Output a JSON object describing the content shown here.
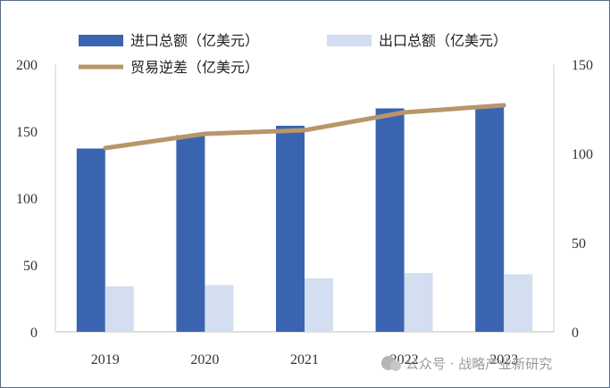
{
  "chart_data": {
    "type": "bar",
    "categories": [
      "2019",
      "2020",
      "2021",
      "2022",
      "2023"
    ],
    "series": [
      {
        "name": "进口总额（亿美元）",
        "type": "bar",
        "axis": "left",
        "color": "#3a64b0",
        "values": [
          137,
          147,
          154,
          167,
          169
        ]
      },
      {
        "name": "出口总额（亿美元）",
        "type": "bar",
        "axis": "left",
        "color": "#d3def0",
        "values": [
          34,
          35,
          40,
          44,
          43
        ]
      },
      {
        "name": "贸易逆差（亿美元）",
        "type": "line",
        "axis": "right",
        "color": "#b8966a",
        "values": [
          103,
          111,
          113,
          123,
          127
        ]
      }
    ],
    "ylim_left": [
      0,
      200
    ],
    "yticks_left": [
      "0",
      "50",
      "100",
      "150",
      "200"
    ],
    "ylim_right": [
      0,
      150
    ],
    "yticks_right": [
      "0",
      "50",
      "100",
      "150"
    ],
    "grid": false,
    "legend_position": "top"
  },
  "watermark": "公众号 · 战略产业新研究"
}
